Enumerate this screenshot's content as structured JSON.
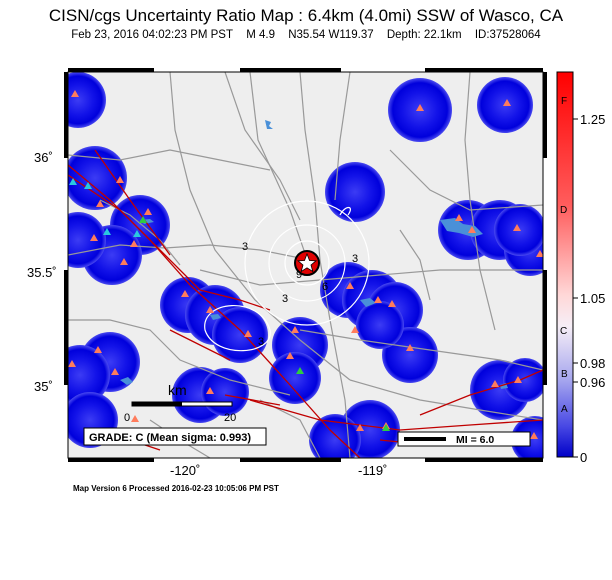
{
  "title": "CISN/cgs Uncertainty Ratio Map : 6.4km (4.0mi) SSW of Wasco, CA",
  "subtitle": {
    "datetime": "Feb 23, 2016 04:02:23 PM PST",
    "magnitude": "M 4.9",
    "location": "N35.54 W119.37",
    "depth": "Depth: 22.1km",
    "event_id": "ID:37528064"
  },
  "axes": {
    "lat_labels": [
      "36˚",
      "35.5˚",
      "35˚"
    ],
    "lon_labels": [
      "-120˚",
      "-119˚"
    ]
  },
  "scale_bar": {
    "unit_label": "km",
    "zero_label": "0",
    "end_label": "20"
  },
  "grade_box": "GRADE: C (Mean sigma: 0.993)",
  "legend_box": "MI = 6.0",
  "contour_labels": [
    "3",
    "3",
    "3",
    "6",
    "9",
    "3"
  ],
  "colorbar": {
    "letters": [
      "F",
      "D",
      "C",
      "B",
      "A"
    ],
    "values": [
      "1.25",
      "1.05",
      "0.98",
      "0.96",
      "0"
    ]
  },
  "footer": "Map Version 6 Processed 2016-02-23 10:05:06 PM PST",
  "colors": {
    "uncertainty_blue": "#0000e0",
    "map_background": "#eeeeee",
    "fault_red": "#c00000",
    "road_gray": "#999999",
    "water_blue": "#4a90d8",
    "epicenter_red": "#e00000",
    "station_orange": "#ff7c5c",
    "station_green": "#2ecc40",
    "station_cyan": "#2ac9e0"
  }
}
